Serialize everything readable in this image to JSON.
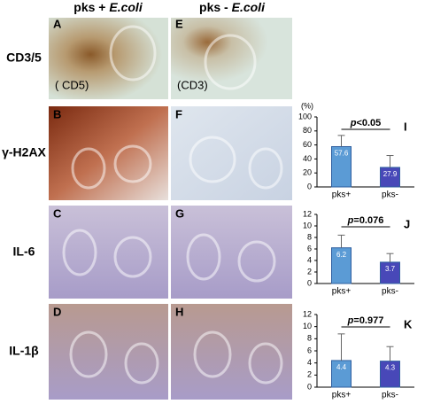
{
  "column_headers": [
    {
      "text": "pks + ",
      "emphasis": "E.coli"
    },
    {
      "text": "pks - ",
      "emphasis": "E.coli"
    }
  ],
  "row_labels": [
    "CD3/5",
    "γ-H2AX",
    "IL-6",
    "IL-1β"
  ],
  "panels": [
    [
      "A",
      "E"
    ],
    [
      "B",
      "F"
    ],
    [
      "C",
      "G"
    ],
    [
      "D",
      "H"
    ]
  ],
  "image_notes": [
    "( CD5)",
    "(CD3)"
  ],
  "chart_data": [
    {
      "type": "bar",
      "panel": "I",
      "y_unit": "(%)",
      "annotation": {
        "italic": "p",
        "text": "<0.05"
      },
      "categories": [
        "pks+",
        "pks-"
      ],
      "values": [
        57.6,
        27.9
      ],
      "errors": [
        16,
        17
      ],
      "colors": [
        "#5b9bd5",
        "#4848b8"
      ],
      "ylim": [
        0,
        100
      ],
      "yticks": [
        0,
        20,
        40,
        60,
        80,
        100
      ]
    },
    {
      "type": "bar",
      "panel": "J",
      "annotation": {
        "italic": "p",
        "text": "=0.076"
      },
      "categories": [
        "pks+",
        "pks-"
      ],
      "values": [
        6.2,
        3.7
      ],
      "errors": [
        2.2,
        1.5
      ],
      "colors": [
        "#5b9bd5",
        "#4848b8"
      ],
      "ylim": [
        0,
        12
      ],
      "yticks": [
        0,
        2,
        4,
        6,
        8,
        10,
        12
      ]
    },
    {
      "type": "bar",
      "panel": "K",
      "annotation": {
        "italic": "p",
        "text": "=0.977"
      },
      "categories": [
        "pks+",
        "pks-"
      ],
      "values": [
        4.4,
        4.3
      ],
      "errors": [
        4.4,
        2.4
      ],
      "colors": [
        "#5b9bd5",
        "#4848b8"
      ],
      "ylim": [
        0,
        12
      ],
      "yticks": [
        0,
        2,
        4,
        6,
        8,
        10,
        12
      ]
    }
  ]
}
